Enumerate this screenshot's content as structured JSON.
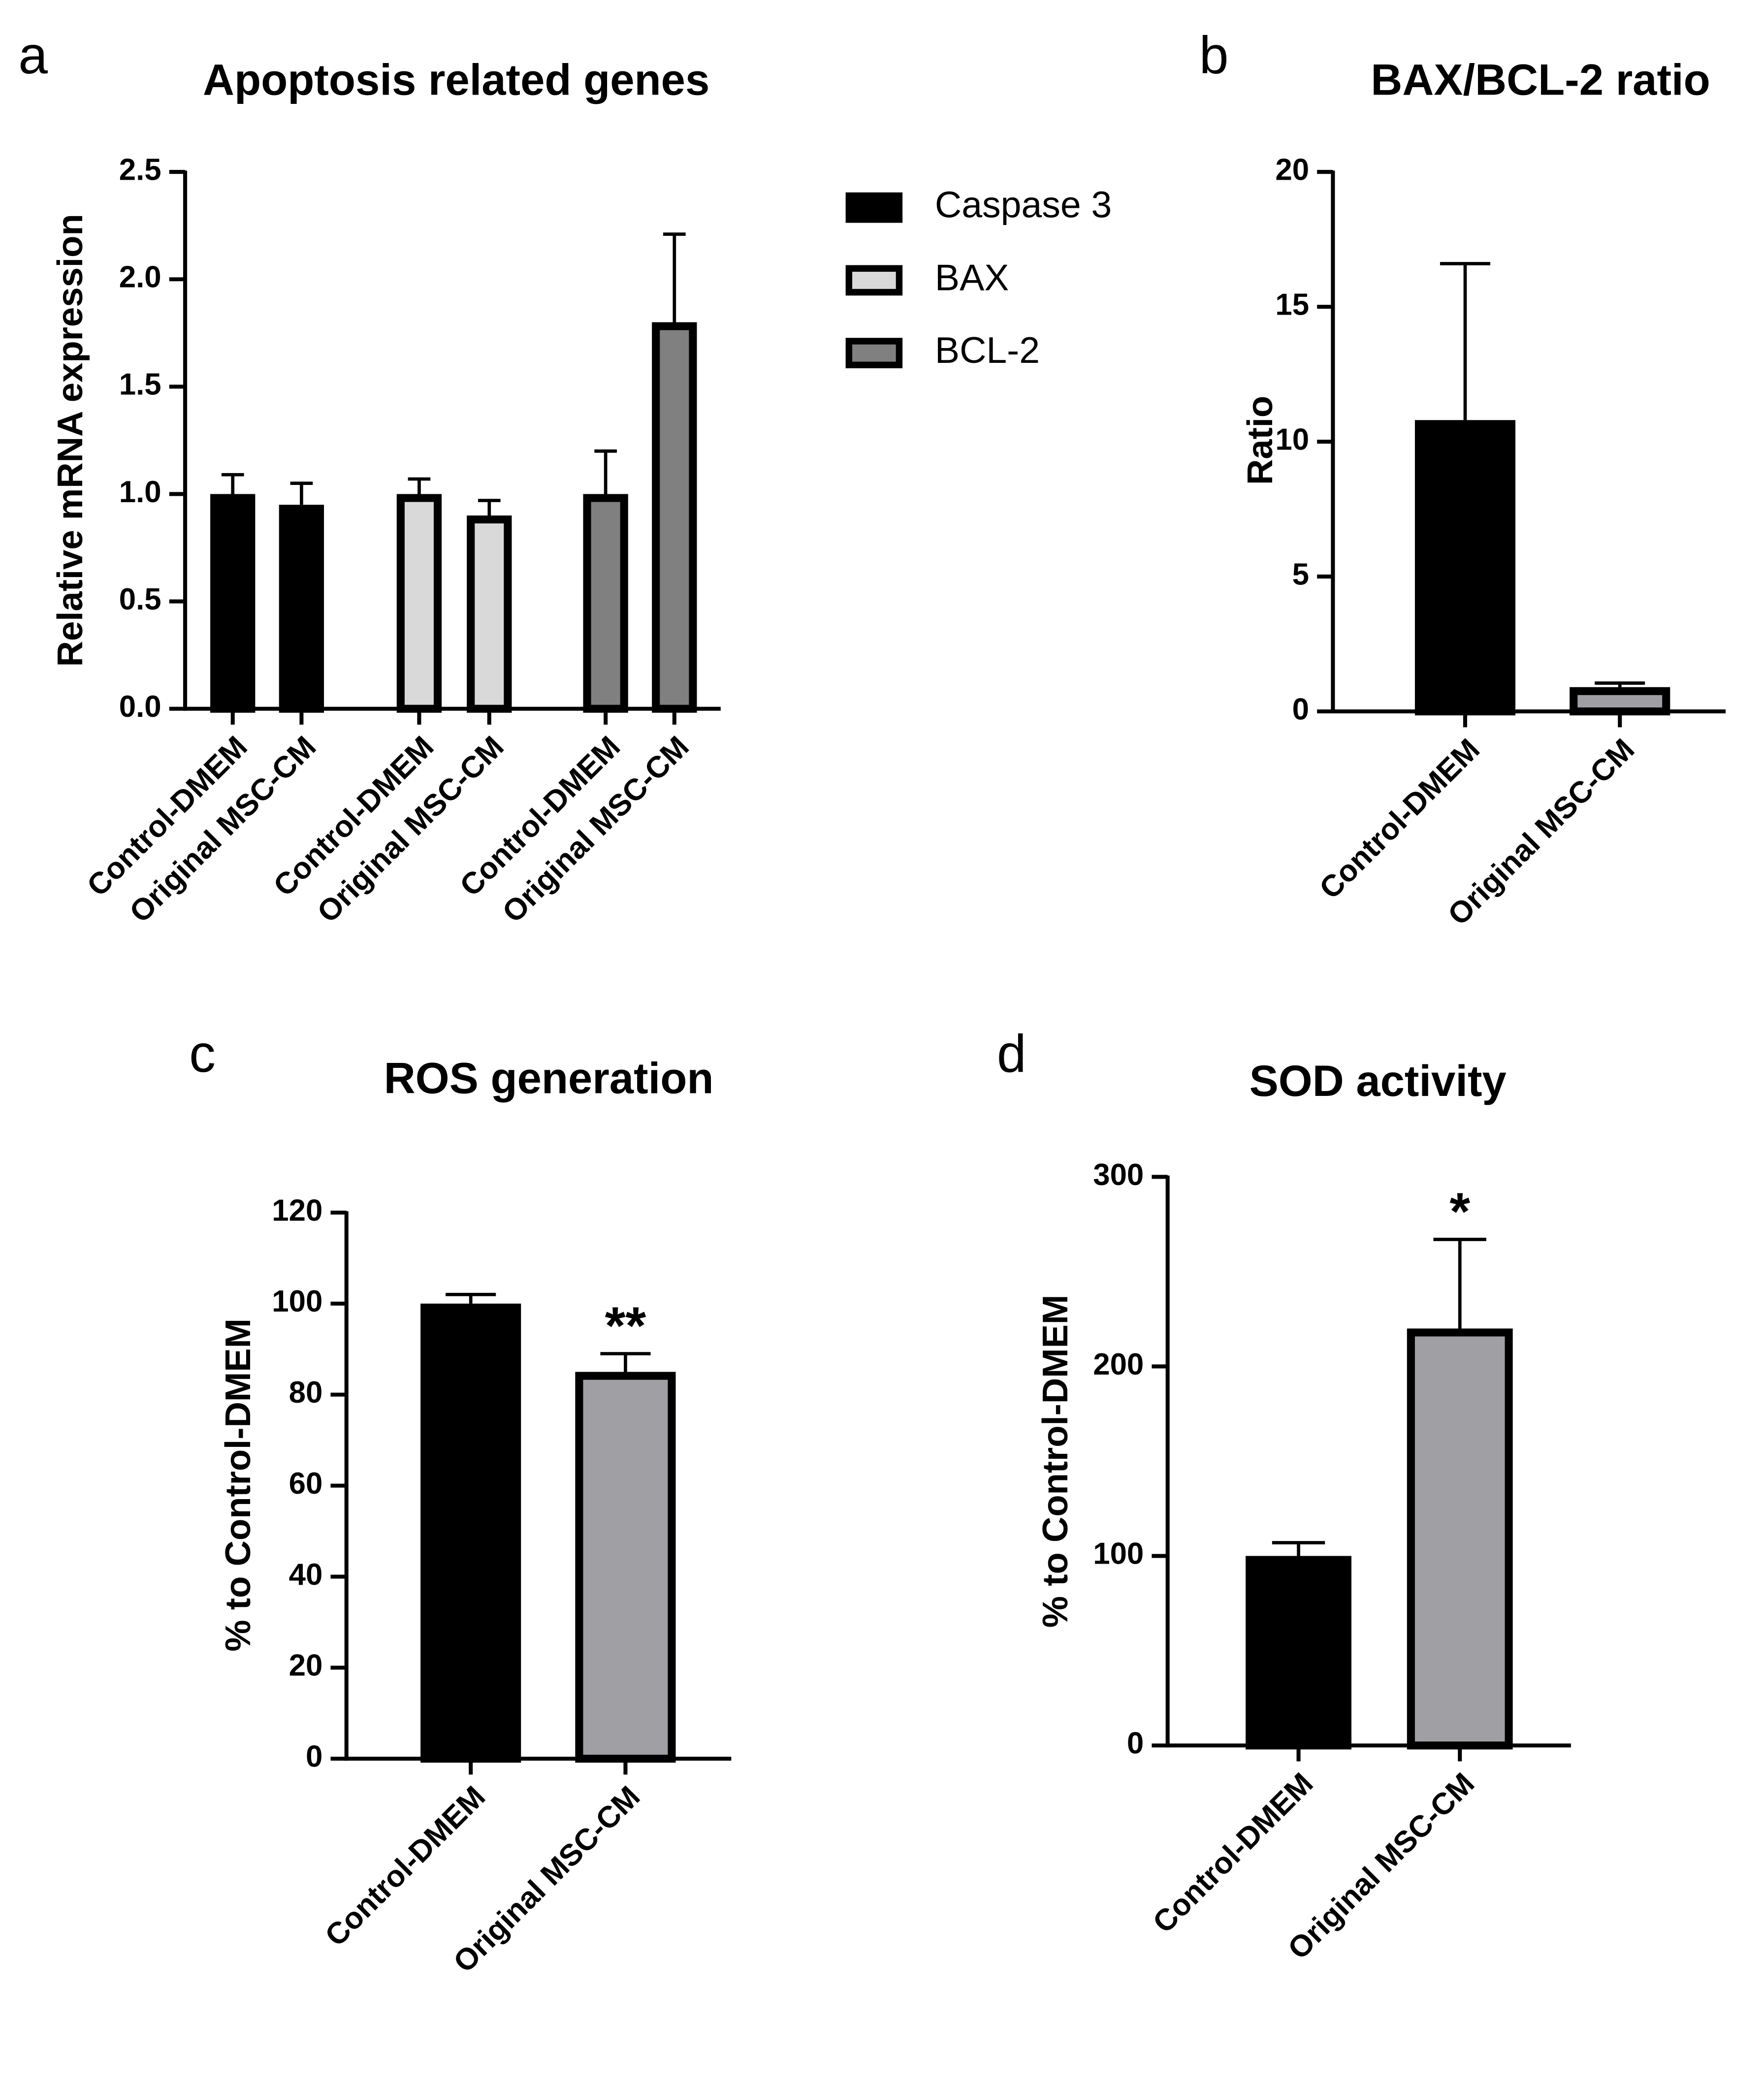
{
  "chart_data": [
    {
      "type": "bar",
      "panel": "a",
      "title": "Apoptosis related genes",
      "y_label": "Relative mRNA expression",
      "categories": [
        "Control-DMEM",
        "Original MSC-CM",
        "Control-DMEM",
        "Original MSC-CM",
        "Control-DMEM",
        "Original MSC-CM"
      ],
      "series": [
        {
          "name": "Caspase 3",
          "color": "#000000",
          "values": [
            1.0,
            0.95,
            null,
            null,
            null,
            null
          ],
          "errors": [
            0.09,
            0.1,
            null,
            null,
            null,
            null
          ]
        },
        {
          "name": "BAX",
          "color": "#d9d9d9",
          "values": [
            null,
            null,
            1.0,
            0.9,
            null,
            null
          ],
          "errors": [
            null,
            null,
            0.07,
            0.07,
            null,
            null
          ]
        },
        {
          "name": "BCL-2",
          "color": "#808080",
          "values": [
            null,
            null,
            null,
            null,
            1.0,
            1.8
          ],
          "errors": [
            null,
            null,
            null,
            null,
            0.2,
            0.41
          ]
        }
      ],
      "ylim": [
        0,
        2.5
      ],
      "yticks": [
        {
          "value": 0,
          "label": "0.0"
        },
        0.5,
        {
          "value": 1,
          "label": "1.0"
        },
        1.5,
        {
          "value": 2,
          "label": "2.0"
        },
        2.5
      ],
      "legend": "right"
    },
    {
      "type": "bar",
      "panel": "b",
      "title": "BAX/BCL-2 ratio",
      "y_label": "Ratio",
      "categories": [
        "Control-DMEM",
        "Original MSC-CM"
      ],
      "values": [
        10.8,
        0.9
      ],
      "errors": [
        5.8,
        0.15
      ],
      "colors": [
        "#000000",
        "#a0a0a4"
      ],
      "ylim": [
        0,
        20
      ],
      "yticks": [
        0,
        5,
        10,
        15,
        20
      ]
    },
    {
      "type": "bar",
      "panel": "c",
      "title": "ROS generation",
      "y_label": "% to Control-DMEM",
      "categories": [
        "Control-DMEM",
        "Original MSC-CM"
      ],
      "values": [
        100,
        85
      ],
      "errors": [
        2,
        4
      ],
      "colors": [
        "#000000",
        "#a0a0a4"
      ],
      "significance": [
        null,
        "**"
      ],
      "ylim": [
        0,
        120
      ],
      "yticks": [
        0,
        20,
        40,
        60,
        80,
        100,
        120
      ]
    },
    {
      "type": "bar",
      "panel": "d",
      "title": "SOD activity",
      "y_label": "% to Control-DMEM",
      "categories": [
        "Control-DMEM",
        "Original MSC-CM"
      ],
      "values": [
        100,
        220
      ],
      "errors": [
        7,
        47
      ],
      "colors": [
        "#000000",
        "#a0a0a4"
      ],
      "significance": [
        null,
        "*"
      ],
      "ylim": [
        0,
        300
      ],
      "yticks": [
        0,
        100,
        200,
        300
      ]
    }
  ]
}
